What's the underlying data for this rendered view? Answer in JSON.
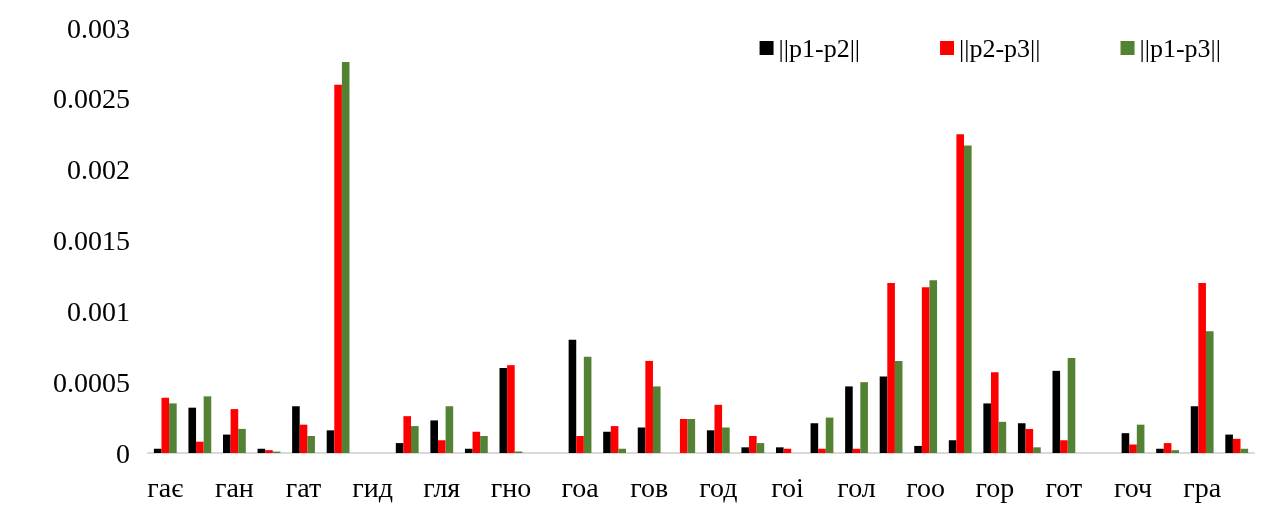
{
  "chart_data": {
    "type": "bar",
    "categories": [
      "гає",
      null,
      "ган",
      null,
      "гат",
      null,
      "гид",
      null,
      "гля",
      null,
      "гно",
      null,
      "гоа",
      null,
      "гов",
      null,
      "год",
      null,
      "гоі",
      null,
      "гол",
      null,
      "гоо",
      null,
      "гор",
      null,
      "гот",
      null,
      "гоч",
      null,
      "гра",
      null
    ],
    "series": [
      {
        "name": "||p1-p2||",
        "color": "#000000",
        "values": [
          3e-05,
          0.00032,
          0.00013,
          3e-05,
          0.00033,
          0.00016,
          0,
          7e-05,
          0.00023,
          3e-05,
          0.0006,
          0,
          0.0008,
          0.00015,
          0.00018,
          0,
          0.00016,
          4e-05,
          4e-05,
          0.00021,
          0.00047,
          0.00054,
          5e-05,
          9e-05,
          0.00035,
          0.00021,
          0.00058,
          0,
          0.00014,
          3e-05,
          0.00033,
          0.00013
        ]
      },
      {
        "name": "||p2-p3||",
        "color": "#ff0000",
        "values": [
          0.00039,
          8e-05,
          0.00031,
          2e-05,
          0.0002,
          0.0026,
          0,
          0.00026,
          9e-05,
          0.00015,
          0.00062,
          0,
          0.00012,
          0.00019,
          0.00065,
          0.00024,
          0.00034,
          0.00012,
          3e-05,
          3e-05,
          3e-05,
          0.0012,
          0.00117,
          0.00225,
          0.00057,
          0.00017,
          9e-05,
          0,
          6e-05,
          7e-05,
          0.0012,
          0.0001
        ]
      },
      {
        "name": "||p1-p3||",
        "color": "#548235",
        "values": [
          0.00035,
          0.0004,
          0.00017,
          1e-05,
          0.00012,
          0.00276,
          0,
          0.00019,
          0.00033,
          0.00012,
          1e-05,
          0,
          0.00068,
          3e-05,
          0.00047,
          0.00024,
          0.00018,
          7e-05,
          0,
          0.00025,
          0.0005,
          0.00065,
          0.00122,
          0.00217,
          0.00022,
          4e-05,
          0.00067,
          0,
          0.0002,
          2e-05,
          0.00086,
          3e-05
        ]
      }
    ],
    "ylim": [
      0,
      0.003
    ],
    "yticks": [
      0,
      0.0005,
      0.001,
      0.0015,
      0.002,
      0.0025,
      0.003
    ],
    "grid": false,
    "legend": "top right"
  }
}
